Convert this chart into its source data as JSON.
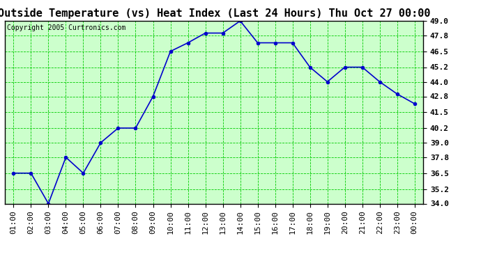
{
  "title": "Outside Temperature (vs) Heat Index (Last 24 Hours) Thu Oct 27 00:00",
  "copyright": "Copyright 2005 Curtronics.com",
  "x_labels": [
    "01:00",
    "02:00",
    "03:00",
    "04:00",
    "05:00",
    "06:00",
    "07:00",
    "08:00",
    "09:00",
    "10:00",
    "11:00",
    "12:00",
    "13:00",
    "14:00",
    "15:00",
    "16:00",
    "17:00",
    "18:00",
    "19:00",
    "20:00",
    "21:00",
    "22:00",
    "23:00",
    "00:00"
  ],
  "y_values": [
    36.5,
    36.5,
    34.0,
    37.8,
    36.5,
    39.0,
    40.2,
    40.2,
    42.8,
    46.5,
    47.2,
    48.0,
    48.0,
    49.0,
    47.2,
    47.2,
    47.2,
    45.2,
    44.0,
    45.2,
    45.2,
    44.0,
    43.0,
    42.2
  ],
  "ylim": [
    34.0,
    49.0
  ],
  "yticks": [
    34.0,
    35.2,
    36.5,
    37.8,
    39.0,
    40.2,
    41.5,
    42.8,
    44.0,
    45.2,
    46.5,
    47.8,
    49.0
  ],
  "line_color": "#0000cc",
  "marker_color": "#0000cc",
  "bg_color": "#ccffcc",
  "grid_color": "#00cc00",
  "title_fontsize": 11,
  "copyright_fontsize": 7,
  "tick_fontsize": 8
}
